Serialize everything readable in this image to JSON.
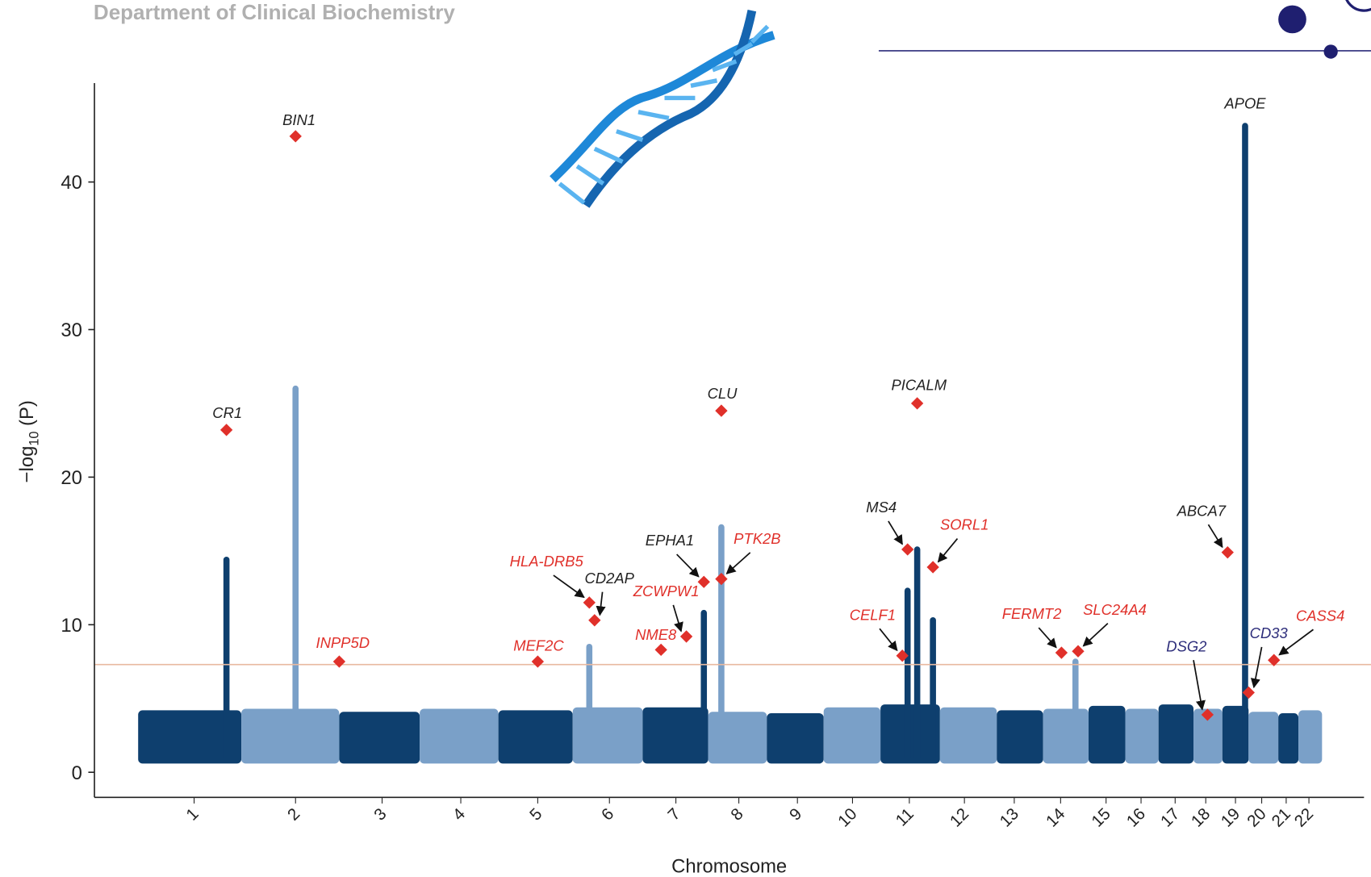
{
  "header": "Department of Clinical Biochemistry",
  "chart_data": {
    "type": "manhattan",
    "x_label": "Chromosome",
    "y_label": [
      "−log",
      "10",
      " (P)"
    ],
    "categories": [
      "1",
      "2",
      "3",
      "4",
      "5",
      "6",
      "7",
      "8",
      "9",
      "10",
      "11",
      "12",
      "13",
      "14",
      "15",
      "16",
      "17",
      "18",
      "19",
      "20",
      "21",
      "22"
    ],
    "background": [
      4.2,
      4.3,
      4.1,
      4.3,
      4.2,
      4.4,
      4.4,
      4.1,
      4.0,
      4.4,
      4.6,
      4.4,
      4.2,
      4.3,
      4.5,
      4.3,
      4.6,
      4.3,
      4.5,
      4.1,
      4.0,
      4.2
    ],
    "colors": [
      "#0e3f6e",
      "#7aa0c8"
    ],
    "ylim": [
      -1.7,
      46.7
    ],
    "yticks": [
      0,
      10,
      20,
      30,
      40
    ],
    "threshold": 7.3,
    "threshold_color": "#e8b9a0",
    "hit_color": "#e0302a",
    "towers": {
      "labels": [
        null,
        null,
        null,
        null,
        null,
        null,
        null,
        null,
        null,
        "APOE"
      ],
      "chromosomes": [
        "1",
        "2",
        "6",
        "7",
        "8",
        "11",
        "11",
        "11",
        "14",
        "19"
      ],
      "values": [
        14.4,
        26.0,
        8.5,
        10.8,
        16.6,
        12.3,
        15.1,
        10.3,
        7.5,
        43.8
      ]
    },
    "hits": {
      "labels": [
        "CR1",
        "BIN1",
        "INPP5D",
        "MEF2C",
        "HLA-DRB5",
        "CD2AP",
        "NME8",
        "ZCWPW1",
        "EPHA1",
        "PTK2B",
        "CLU",
        "PICALM",
        "MS4",
        "SORL1",
        "CELF1",
        "FERMT2",
        "SLC24A4",
        "ABCA7",
        "DSG2",
        "CD33",
        "CASS4"
      ],
      "chromosomes": [
        "1",
        "2",
        "2",
        "5",
        "6",
        "6",
        "7",
        "7",
        "7",
        "8",
        "8",
        "11",
        "11",
        "11",
        "11",
        "14",
        "14",
        "19",
        "18",
        "19",
        "20"
      ],
      "values": [
        23.2,
        43.1,
        7.5,
        7.5,
        11.5,
        10.3,
        8.3,
        9.2,
        12.9,
        13.1,
        24.5,
        25.0,
        15.1,
        13.9,
        7.9,
        8.1,
        8.2,
        14.9,
        3.9,
        5.4,
        7.6
      ],
      "label_colors": [
        "#222",
        "#222",
        "#e0302a",
        "#e0302a",
        "#e0302a",
        "#222",
        "#e0302a",
        "#e0302a",
        "#222",
        "#e0302a",
        "#222",
        "#222",
        "#222",
        "#e0302a",
        "#e0302a",
        "#e0302a",
        "#e0302a",
        "#222",
        "#2c2c7a",
        "#2c2c7a",
        "#e0302a"
      ]
    }
  }
}
